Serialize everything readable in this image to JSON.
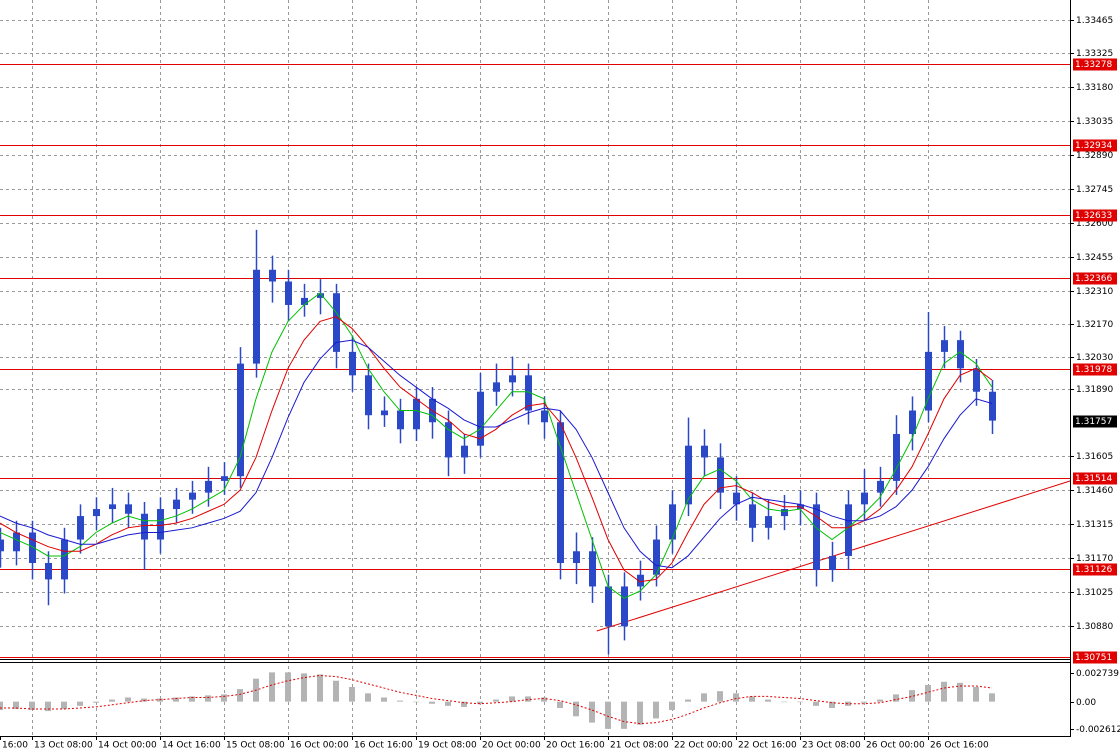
{
  "chart_data": [
    {
      "type": "candlestick",
      "categories": [
        "16:00",
        null,
        "13 Oct 08:00",
        null,
        null,
        null,
        "14 Oct 00:00",
        null,
        null,
        null,
        "14 Oct 16:00",
        null,
        null,
        null,
        "15 Oct 08:00",
        null,
        null,
        null,
        "16 Oct 00:00",
        null,
        null,
        null,
        "16 Oct 16:00",
        null,
        null,
        null,
        "19 Oct 08:00",
        null,
        null,
        null,
        "20 Oct 00:00",
        null,
        null,
        null,
        "20 Oct 16:00",
        null,
        null,
        null,
        "21 Oct 08:00",
        null,
        null,
        null,
        "22 Oct 00:00",
        null,
        null,
        null,
        "22 Oct 16:00",
        null,
        null,
        null,
        "23 Oct 08:00",
        null,
        null,
        null,
        "26 Oct 00:00",
        null,
        null,
        null,
        "26 Oct 16:00",
        null,
        null,
        null,
        null
      ],
      "open": [
        1.3125,
        1.312,
        1.3128,
        1.3115,
        1.3108,
        1.3125,
        1.3135,
        1.3138,
        1.314,
        1.3136,
        1.3125,
        1.3138,
        1.3142,
        1.3145,
        1.315,
        1.3152,
        1.32,
        1.324,
        1.3235,
        1.3225,
        1.3228,
        1.323,
        1.3205,
        1.3195,
        1.3178,
        1.318,
        1.3172,
        1.3185,
        1.3175,
        1.316,
        1.3165,
        1.3188,
        1.3192,
        1.3195,
        1.318,
        1.3175,
        1.3115,
        1.312,
        1.3105,
        1.3088,
        1.3105,
        1.311,
        1.3125,
        1.314,
        1.3165,
        1.316,
        1.3145,
        1.314,
        1.313,
        1.3135,
        1.3138,
        1.314,
        1.3112,
        1.3118,
        1.314,
        1.3145,
        1.315,
        1.317,
        1.318,
        1.3205,
        1.321,
        1.3198,
        1.3188
      ],
      "high": [
        1.313,
        1.3133,
        1.3133,
        1.312,
        1.313,
        1.314,
        1.3143,
        1.3147,
        1.3145,
        1.3141,
        1.3143,
        1.3147,
        1.315,
        1.3156,
        1.3158,
        1.3207,
        1.3257,
        1.3246,
        1.324,
        1.3234,
        1.3236,
        1.3234,
        1.3212,
        1.32,
        1.3186,
        1.3185,
        1.319,
        1.319,
        1.318,
        1.317,
        1.3196,
        1.32,
        1.3203,
        1.32,
        1.3186,
        1.318,
        1.3128,
        1.3126,
        1.311,
        1.3111,
        1.3116,
        1.3131,
        1.3146,
        1.3177,
        1.3172,
        1.3166,
        1.3152,
        1.3145,
        1.3142,
        1.3144,
        1.3146,
        1.3145,
        1.3124,
        1.3146,
        1.3155,
        1.3156,
        1.3178,
        1.3186,
        1.3222,
        1.3216,
        1.3214,
        1.3202,
        1.3193
      ],
      "low": [
        1.3113,
        1.3114,
        1.3108,
        1.3097,
        1.3102,
        1.3119,
        1.3129,
        1.3132,
        1.313,
        1.3112,
        1.3119,
        1.3132,
        1.3136,
        1.3139,
        1.3144,
        1.3147,
        1.3194,
        1.3226,
        1.3218,
        1.322,
        1.3221,
        1.3198,
        1.3188,
        1.3172,
        1.3173,
        1.3166,
        1.3167,
        1.3168,
        1.3152,
        1.3153,
        1.316,
        1.3182,
        1.3186,
        1.3174,
        1.3168,
        1.3108,
        1.3106,
        1.3098,
        1.3076,
        1.3082,
        1.3099,
        1.3105,
        1.3119,
        1.3135,
        1.3152,
        1.3138,
        1.3133,
        1.3124,
        1.3125,
        1.3129,
        1.3131,
        1.3105,
        1.3107,
        1.3112,
        1.3133,
        1.3139,
        1.3144,
        1.3163,
        1.3175,
        1.3198,
        1.3192,
        1.3182,
        1.317
      ],
      "close": [
        1.312,
        1.3128,
        1.3115,
        1.3108,
        1.3125,
        1.3135,
        1.3138,
        1.314,
        1.3136,
        1.3125,
        1.3138,
        1.3142,
        1.3145,
        1.315,
        1.3152,
        1.32,
        1.324,
        1.3235,
        1.3225,
        1.3228,
        1.323,
        1.3205,
        1.3195,
        1.3178,
        1.318,
        1.3172,
        1.3185,
        1.3175,
        1.316,
        1.3165,
        1.3188,
        1.3192,
        1.3195,
        1.318,
        1.3175,
        1.3115,
        1.312,
        1.3105,
        1.3088,
        1.3105,
        1.311,
        1.3125,
        1.314,
        1.3165,
        1.316,
        1.3145,
        1.314,
        1.313,
        1.3135,
        1.3138,
        1.314,
        1.3112,
        1.3118,
        1.314,
        1.3145,
        1.315,
        1.317,
        1.318,
        1.3205,
        1.321,
        1.3198,
        1.3188,
        1.31757
      ],
      "color": "#2a48c8",
      "lines": [
        {
          "color": "#00c000",
          "values": [
            1.3128,
            1.3125,
            1.3122,
            1.3118,
            1.3118,
            1.3122,
            1.3128,
            1.3132,
            1.3135,
            1.3133,
            1.3133,
            1.3135,
            1.3138,
            1.3142,
            1.3146,
            1.316,
            1.3185,
            1.3205,
            1.3218,
            1.3225,
            1.323,
            1.3222,
            1.3212,
            1.3198,
            1.3188,
            1.318,
            1.318,
            1.3178,
            1.3172,
            1.3168,
            1.3172,
            1.318,
            1.3188,
            1.3188,
            1.3185,
            1.3165,
            1.3145,
            1.3125,
            1.3105,
            1.31,
            1.3103,
            1.311,
            1.3125,
            1.3142,
            1.3152,
            1.3155,
            1.315,
            1.3142,
            1.3138,
            1.3137,
            1.3138,
            1.313,
            1.3125,
            1.313,
            1.3136,
            1.3143,
            1.3155,
            1.3168,
            1.3185,
            1.32,
            1.3205,
            1.32,
            1.319
          ]
        },
        {
          "color": "#e00000",
          "values": [
            1.3132,
            1.3128,
            1.3125,
            1.3122,
            1.312,
            1.312,
            1.3123,
            1.3127,
            1.313,
            1.3131,
            1.3131,
            1.3132,
            1.3134,
            1.3137,
            1.314,
            1.3146,
            1.316,
            1.318,
            1.3198,
            1.321,
            1.3218,
            1.322,
            1.3215,
            1.3207,
            1.3198,
            1.319,
            1.3185,
            1.318,
            1.3176,
            1.317,
            1.3168,
            1.3172,
            1.3178,
            1.3182,
            1.3183,
            1.3175,
            1.316,
            1.3143,
            1.3125,
            1.3112,
            1.3107,
            1.3108,
            1.3115,
            1.3128,
            1.314,
            1.3147,
            1.3148,
            1.3145,
            1.3141,
            1.3139,
            1.3139,
            1.3135,
            1.313,
            1.313,
            1.3133,
            1.3138,
            1.3146,
            1.3156,
            1.317,
            1.3185,
            1.3195,
            1.3198,
            1.3193
          ]
        },
        {
          "color": "#1a1ad0",
          "values": [
            1.3135,
            1.3132,
            1.313,
            1.3127,
            1.3125,
            1.3123,
            1.3123,
            1.3125,
            1.3127,
            1.3128,
            1.3128,
            1.3129,
            1.313,
            1.3132,
            1.3134,
            1.3137,
            1.3145,
            1.316,
            1.3177,
            1.3192,
            1.3202,
            1.3209,
            1.321,
            1.3207,
            1.3201,
            1.3195,
            1.319,
            1.3185,
            1.3181,
            1.3176,
            1.3173,
            1.3173,
            1.3176,
            1.3179,
            1.3181,
            1.318,
            1.3172,
            1.316,
            1.3145,
            1.313,
            1.312,
            1.3114,
            1.3113,
            1.3118,
            1.3126,
            1.3134,
            1.314,
            1.3143,
            1.3142,
            1.3141,
            1.314,
            1.3138,
            1.3135,
            1.3133,
            1.3133,
            1.3135,
            1.3139,
            1.3146,
            1.3156,
            1.3168,
            1.3178,
            1.3185,
            1.3183
          ]
        }
      ],
      "levels": [
        1.33278,
        1.32934,
        1.32633,
        1.32366,
        1.31978,
        1.31514,
        1.31126,
        1.30751
      ],
      "level_color": "#e00000",
      "current_price": 1.31757,
      "trendline": {
        "start": [
          37.3,
          1.3086
        ],
        "end": [
          66.9,
          1.315
        ]
      },
      "ylim": [
        1.30745,
        1.3355
      ],
      "yticks": [
        1.33465,
        1.33325,
        {
          "value": 1.3318,
          "label": "1.33180"
        },
        1.33035,
        {
          "value": 1.3289,
          "label": "1.32890"
        },
        1.32745,
        {
          "value": 1.326,
          "label": "1.32600"
        },
        1.32455,
        {
          "value": 1.3231,
          "label": "1.32310"
        },
        {
          "value": 1.3217,
          "label": "1.32170"
        },
        {
          "value": 1.3203,
          "label": "1.32030"
        },
        {
          "value": 1.3189,
          "label": "1.31890"
        },
        1.31605,
        {
          "value": 1.3146,
          "label": "1.31460"
        },
        1.31315,
        {
          "value": 1.3117,
          "label": "1.31170"
        },
        1.31025,
        {
          "value": 1.3088,
          "label": "1.30880"
        }
      ],
      "grid": true
    },
    {
      "type": "macd",
      "values": [
        -0.0008,
        -0.0007,
        -0.0008,
        -0.0009,
        -0.0007,
        -0.0004,
        -0.0001,
        0.0002,
        0.0004,
        0.0003,
        0.0003,
        0.0004,
        0.0005,
        0.0006,
        0.0007,
        0.0012,
        0.0022,
        0.0028,
        0.0028,
        0.0027,
        0.0026,
        0.002,
        0.0014,
        0.0008,
        0.0004,
        0.0001,
        0.0,
        -0.0002,
        -0.0004,
        -0.0005,
        -0.0002,
        0.0002,
        0.0005,
        0.0005,
        0.0004,
        -0.0006,
        -0.0014,
        -0.002,
        -0.0026,
        -0.0026,
        -0.0022,
        -0.0016,
        -0.0008,
        0.0002,
        0.0008,
        0.001,
        0.0008,
        0.0005,
        0.0002,
        0.0,
        0.0,
        -0.0004,
        -0.0006,
        -0.0004,
        -0.0001,
        0.0002,
        0.0007,
        0.0011,
        0.0016,
        0.0019,
        0.0018,
        0.0014,
        0.0008
      ],
      "signal": [
        -0.0006,
        -0.0006,
        -0.0007,
        -0.0007,
        -0.0007,
        -0.0006,
        -0.0005,
        -0.0003,
        -0.0001,
        0.0001,
        0.0002,
        0.0003,
        0.0004,
        0.0004,
        0.0005,
        0.0007,
        0.0011,
        0.0016,
        0.002,
        0.0023,
        0.0025,
        0.0024,
        0.0021,
        0.0017,
        0.0013,
        0.0009,
        0.0006,
        0.0003,
        0.0001,
        -0.0001,
        -0.0002,
        -0.0001,
        0.0,
        0.0002,
        0.0003,
        0.0001,
        -0.0003,
        -0.0008,
        -0.0014,
        -0.0019,
        -0.0021,
        -0.002,
        -0.0017,
        -0.0012,
        -0.0006,
        -0.0001,
        0.0003,
        0.0005,
        0.0005,
        0.0004,
        0.0003,
        0.0001,
        -0.0001,
        -0.0002,
        -0.0002,
        -0.0001,
        0.0002,
        0.0005,
        0.0009,
        0.0013,
        0.0015,
        0.0015,
        0.0013
      ],
      "color": "#b4b4b4",
      "signal_color": "#e00000",
      "ylim": [
        -0.003281,
        0.00379
      ],
      "yticks": [
        0.002739,
        {
          "value": 0,
          "label": "0.00"
        },
        -0.002612
      ]
    }
  ]
}
